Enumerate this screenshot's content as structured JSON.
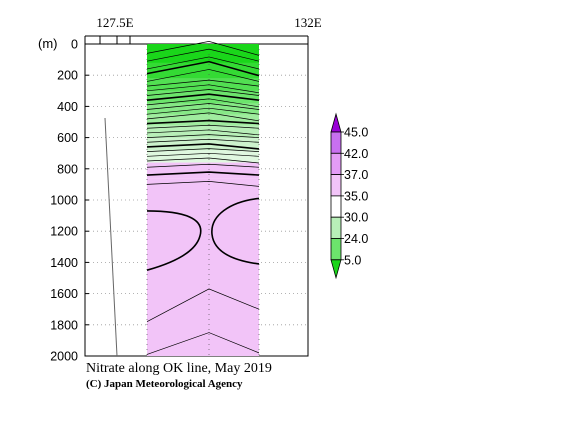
{
  "chart_data": {
    "type": "heatmap",
    "title": "Nitrate along OK line, May 2019",
    "credit": "(C) Japan Meteorological Agency",
    "xlabel": "",
    "ylabel": "(m)",
    "x_ticks": [
      "127.5E",
      "132E"
    ],
    "y_ticks": [
      0,
      200,
      400,
      600,
      800,
      1000,
      1200,
      1400,
      1600,
      1800,
      2000
    ],
    "ylim": [
      2000,
      0
    ],
    "grid": true,
    "legend": {
      "placement": "right",
      "labels": [
        "45.0",
        "42.0",
        "37.0",
        "35.0",
        "30.0",
        "24.0",
        "5.0"
      ],
      "colors": [
        "#9a00d8",
        "#c870f0",
        "#e39cf6",
        "#f2c4f8",
        "#ffffff",
        "#b8efb8",
        "#6ce46c",
        "#1ad61a"
      ]
    },
    "depth_bands": [
      {
        "depth_from": 0,
        "depth_to": 220,
        "class": "5.0"
      },
      {
        "depth_from": 220,
        "depth_to": 560,
        "class": "24.0"
      },
      {
        "depth_from": 560,
        "depth_to": 760,
        "class": "30.0"
      },
      {
        "depth_from": 760,
        "depth_to": 860,
        "class": "35.0"
      },
      {
        "depth_from": 860,
        "depth_to": 2000,
        "class": "37.0"
      }
    ]
  }
}
